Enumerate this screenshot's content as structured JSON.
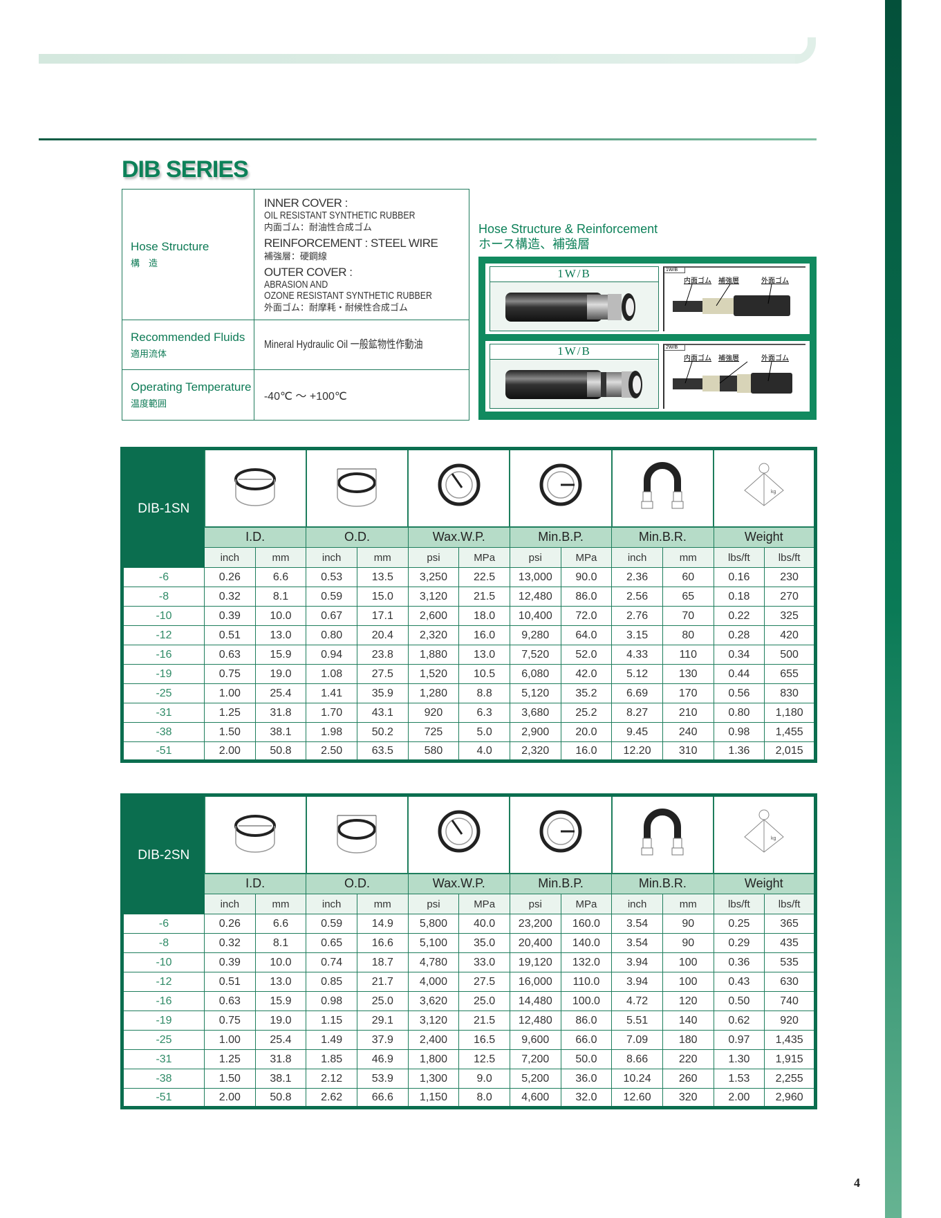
{
  "title": "DIB SERIES",
  "page_number": "4",
  "spec": [
    {
      "label_en": "Hose Structure",
      "label_ja": "構　造",
      "groups": [
        {
          "head": "INNER COVER :",
          "lines": [
            "OIL RESISTANT SYNTHETIC RUBBER"
          ],
          "ja": "内面ゴム：耐油性合成ゴム"
        },
        {
          "head": "REINFORCEMENT : STEEL WIRE",
          "lines": [],
          "ja": "補強層：硬鋼線"
        },
        {
          "head": "OUTER COVER :",
          "lines": [
            "ABRASION AND",
            "OZONE RESISTANT SYNTHETIC RUBBER"
          ],
          "ja": "外面ゴム：耐摩耗・耐候性合成ゴム"
        }
      ]
    },
    {
      "label_en": "Recommended Fluids",
      "label_ja": "適用流体",
      "value": "Mineral Hydraulic Oil 一般鉱物性作動油"
    },
    {
      "label_en": "Operating Temperature",
      "label_ja": "温度範囲",
      "value": "-40℃ ～ +100℃"
    }
  ],
  "hose_structure": {
    "title_en": "Hose Structure & Reinforcement",
    "title_ja": "ホース構造、補強層",
    "panels": [
      {
        "label": "1W/B",
        "tag": "1W/B",
        "callouts": [
          "内面ゴム",
          "補強層",
          "外面ゴム"
        ]
      },
      {
        "label": "1W/B",
        "tag": "2W/B",
        "callouts": [
          "内面ゴム",
          "補強層",
          "外面ゴム"
        ]
      }
    ]
  },
  "column_groups": [
    {
      "label": "I.D.",
      "icon": "inner-diameter-icon",
      "units": [
        "inch",
        "mm"
      ]
    },
    {
      "label": "O.D.",
      "icon": "outer-diameter-icon",
      "units": [
        "inch",
        "mm"
      ]
    },
    {
      "label": "Wax.W.P.",
      "icon": "pressure-gauge-icon",
      "units": [
        "psi",
        "MPa"
      ]
    },
    {
      "label": "Min.B.P.",
      "icon": "burst-gauge-icon",
      "units": [
        "psi",
        "MPa"
      ]
    },
    {
      "label": "Min.B.R.",
      "icon": "bend-radius-icon",
      "units": [
        "inch",
        "mm"
      ]
    },
    {
      "label": "Weight",
      "icon": "weight-icon",
      "units": [
        "lbs/ft",
        "lbs/ft"
      ]
    }
  ],
  "tables": [
    {
      "name": "DIB-1SN",
      "rows": [
        [
          "-6",
          "0.26",
          "6.6",
          "0.53",
          "13.5",
          "3,250",
          "22.5",
          "13,000",
          "90.0",
          "2.36",
          "60",
          "0.16",
          "230"
        ],
        [
          "-8",
          "0.32",
          "8.1",
          "0.59",
          "15.0",
          "3,120",
          "21.5",
          "12,480",
          "86.0",
          "2.56",
          "65",
          "0.18",
          "270"
        ],
        [
          "-10",
          "0.39",
          "10.0",
          "0.67",
          "17.1",
          "2,600",
          "18.0",
          "10,400",
          "72.0",
          "2.76",
          "70",
          "0.22",
          "325"
        ],
        [
          "-12",
          "0.51",
          "13.0",
          "0.80",
          "20.4",
          "2,320",
          "16.0",
          "9,280",
          "64.0",
          "3.15",
          "80",
          "0.28",
          "420"
        ],
        [
          "-16",
          "0.63",
          "15.9",
          "0.94",
          "23.8",
          "1,880",
          "13.0",
          "7,520",
          "52.0",
          "4.33",
          "110",
          "0.34",
          "500"
        ],
        [
          "-19",
          "0.75",
          "19.0",
          "1.08",
          "27.5",
          "1,520",
          "10.5",
          "6,080",
          "42.0",
          "5.12",
          "130",
          "0.44",
          "655"
        ],
        [
          "-25",
          "1.00",
          "25.4",
          "1.41",
          "35.9",
          "1,280",
          "8.8",
          "5,120",
          "35.2",
          "6.69",
          "170",
          "0.56",
          "830"
        ],
        [
          "-31",
          "1.25",
          "31.8",
          "1.70",
          "43.1",
          "920",
          "6.3",
          "3,680",
          "25.2",
          "8.27",
          "210",
          "0.80",
          "1,180"
        ],
        [
          "-38",
          "1.50",
          "38.1",
          "1.98",
          "50.2",
          "725",
          "5.0",
          "2,900",
          "20.0",
          "9.45",
          "240",
          "0.98",
          "1,455"
        ],
        [
          "-51",
          "2.00",
          "50.8",
          "2.50",
          "63.5",
          "580",
          "4.0",
          "2,320",
          "16.0",
          "12.20",
          "310",
          "1.36",
          "2,015"
        ]
      ]
    },
    {
      "name": "DIB-2SN",
      "rows": [
        [
          "-6",
          "0.26",
          "6.6",
          "0.59",
          "14.9",
          "5,800",
          "40.0",
          "23,200",
          "160.0",
          "3.54",
          "90",
          "0.25",
          "365"
        ],
        [
          "-8",
          "0.32",
          "8.1",
          "0.65",
          "16.6",
          "5,100",
          "35.0",
          "20,400",
          "140.0",
          "3.54",
          "90",
          "0.29",
          "435"
        ],
        [
          "-10",
          "0.39",
          "10.0",
          "0.74",
          "18.7",
          "4,780",
          "33.0",
          "19,120",
          "132.0",
          "3.94",
          "100",
          "0.36",
          "535"
        ],
        [
          "-12",
          "0.51",
          "13.0",
          "0.85",
          "21.7",
          "4,000",
          "27.5",
          "16,000",
          "110.0",
          "3.94",
          "100",
          "0.43",
          "630"
        ],
        [
          "-16",
          "0.63",
          "15.9",
          "0.98",
          "25.0",
          "3,620",
          "25.0",
          "14,480",
          "100.0",
          "4.72",
          "120",
          "0.50",
          "740"
        ],
        [
          "-19",
          "0.75",
          "19.0",
          "1.15",
          "29.1",
          "3,120",
          "21.5",
          "12,480",
          "86.0",
          "5.51",
          "140",
          "0.62",
          "920"
        ],
        [
          "-25",
          "1.00",
          "25.4",
          "1.49",
          "37.9",
          "2,400",
          "16.5",
          "9,600",
          "66.0",
          "7.09",
          "180",
          "0.97",
          "1,435"
        ],
        [
          "-31",
          "1.25",
          "31.8",
          "1.85",
          "46.9",
          "1,800",
          "12.5",
          "7,200",
          "50.0",
          "8.66",
          "220",
          "1.30",
          "1,915"
        ],
        [
          "-38",
          "1.50",
          "38.1",
          "2.12",
          "53.9",
          "1,300",
          "9.0",
          "5,200",
          "36.0",
          "10.24",
          "260",
          "1.53",
          "2,255"
        ],
        [
          "-51",
          "2.00",
          "50.8",
          "2.62",
          "66.6",
          "1,150",
          "8.0",
          "4,600",
          "32.0",
          "12.60",
          "320",
          "2.00",
          "2,960"
        ]
      ]
    }
  ],
  "colors": {
    "brand_green": "#0b6e4f",
    "header_band": "#b6dcc8",
    "title_green": "#0d8159"
  }
}
